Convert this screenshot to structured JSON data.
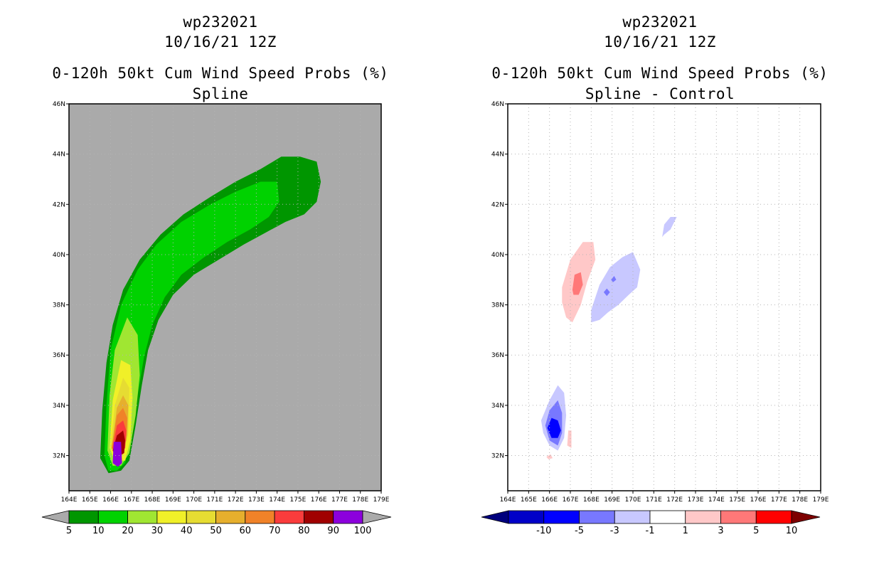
{
  "left_panel": {
    "storm_id": "wp232021",
    "datetime": "10/16/21 12Z",
    "product": "0-120h 50kt Cum Wind Speed Probs (%)",
    "subtitle": "Spline"
  },
  "right_panel": {
    "storm_id": "wp232021",
    "datetime": "10/16/21 12Z",
    "product": "0-120h 50kt Cum Wind Speed Probs (%)",
    "subtitle": "Spline - Control"
  },
  "chart_data": [
    {
      "type": "heatmap",
      "title": "0-120h 50kt Cum Wind Speed Probs (%)",
      "subtitle": "Spline",
      "background_color": "#aaaaaa",
      "x_ticks": [
        "164E",
        "165E",
        "166E",
        "167E",
        "168E",
        "169E",
        "170E",
        "171E",
        "172E",
        "173E",
        "174E",
        "175E",
        "176E",
        "177E",
        "178E",
        "179E"
      ],
      "y_ticks": [
        "32N",
        "34N",
        "36N",
        "38N",
        "40N",
        "42N",
        "44N",
        "46N"
      ],
      "xlim": [
        164,
        179
      ],
      "ylim": [
        30.6,
        46
      ],
      "grid": true,
      "colorbar": {
        "labels": [
          "5",
          "10",
          "20",
          "30",
          "40",
          "50",
          "60",
          "70",
          "80",
          "90",
          "100"
        ],
        "colors": [
          "#009600",
          "#00d200",
          "#a0e632",
          "#f0f028",
          "#e6dc32",
          "#e6af2d",
          "#f08228",
          "#fa3c3c",
          "#a00000",
          "#8c00dc"
        ],
        "under_color": "#aaaaaa",
        "over_color": "#aaaaaa"
      },
      "contours": [
        {
          "level": "5",
          "color": "#009600",
          "polygon": [
            [
              165.5,
              31.9
            ],
            [
              165.6,
              33.8
            ],
            [
              165.8,
              35.7
            ],
            [
              166.1,
              37.2
            ],
            [
              166.6,
              38.6
            ],
            [
              167.4,
              39.8
            ],
            [
              168.4,
              40.8
            ],
            [
              169.5,
              41.6
            ],
            [
              170.8,
              42.3
            ],
            [
              172.0,
              42.9
            ],
            [
              173.2,
              43.4
            ],
            [
              174.2,
              43.9
            ],
            [
              175.1,
              43.9
            ],
            [
              175.9,
              43.7
            ],
            [
              176.1,
              42.9
            ],
            [
              175.9,
              42.1
            ],
            [
              175.3,
              41.6
            ],
            [
              174.4,
              41.3
            ],
            [
              173.5,
              40.9
            ],
            [
              172.4,
              40.4
            ],
            [
              171.2,
              39.8
            ],
            [
              170.0,
              39.2
            ],
            [
              169.0,
              38.4
            ],
            [
              168.3,
              37.4
            ],
            [
              167.8,
              36.2
            ],
            [
              167.5,
              34.8
            ],
            [
              167.2,
              33.2
            ],
            [
              166.9,
              31.8
            ],
            [
              166.5,
              31.4
            ],
            [
              165.9,
              31.3
            ]
          ]
        },
        {
          "level": "10",
          "color": "#00d200",
          "polygon": [
            [
              165.7,
              32.0
            ],
            [
              165.8,
              34.0
            ],
            [
              166.0,
              36.2
            ],
            [
              166.5,
              38.0
            ],
            [
              167.3,
              39.4
            ],
            [
              168.2,
              40.4
            ],
            [
              169.4,
              41.3
            ],
            [
              170.8,
              42.0
            ],
            [
              172.0,
              42.5
            ],
            [
              173.2,
              42.9
            ],
            [
              174.0,
              42.9
            ],
            [
              174.1,
              42.1
            ],
            [
              173.6,
              41.5
            ],
            [
              172.7,
              41.0
            ],
            [
              171.6,
              40.5
            ],
            [
              170.5,
              39.9
            ],
            [
              169.4,
              39.2
            ],
            [
              168.6,
              38.3
            ],
            [
              168.0,
              37.2
            ],
            [
              167.6,
              35.9
            ],
            [
              167.3,
              34.4
            ],
            [
              167.0,
              32.9
            ],
            [
              166.7,
              31.7
            ],
            [
              166.3,
              31.4
            ],
            [
              165.9,
              31.4
            ]
          ]
        },
        {
          "level": "20",
          "color": "#a0e632",
          "polygon": [
            [
              165.85,
              32.2
            ],
            [
              165.95,
              34.4
            ],
            [
              166.2,
              36.2
            ],
            [
              166.8,
              37.5
            ],
            [
              167.3,
              36.8
            ],
            [
              167.4,
              35.2
            ],
            [
              167.2,
              33.6
            ],
            [
              166.9,
              32.1
            ],
            [
              166.5,
              31.6
            ],
            [
              166.1,
              31.6
            ]
          ]
        },
        {
          "level": "30",
          "color": "#f0f028",
          "polygon": [
            [
              165.95,
              32.3
            ],
            [
              166.1,
              34.2
            ],
            [
              166.5,
              35.8
            ],
            [
              166.95,
              35.6
            ],
            [
              167.05,
              34.3
            ],
            [
              166.95,
              32.6
            ],
            [
              166.7,
              31.8
            ],
            [
              166.2,
              31.8
            ]
          ]
        },
        {
          "level": "40",
          "color": "#e6dc32",
          "polygon": [
            [
              166.0,
              32.3
            ],
            [
              166.2,
              34.0
            ],
            [
              166.6,
              35.1
            ],
            [
              166.9,
              34.7
            ],
            [
              166.85,
              32.9
            ],
            [
              166.6,
              32.0
            ],
            [
              166.2,
              32.0
            ]
          ]
        },
        {
          "level": "50",
          "color": "#e6af2d",
          "polygon": [
            [
              166.05,
              32.3
            ],
            [
              166.3,
              33.9
            ],
            [
              166.6,
              34.4
            ],
            [
              166.85,
              34.0
            ],
            [
              166.8,
              32.8
            ],
            [
              166.55,
              32.1
            ],
            [
              166.2,
              32.1
            ]
          ]
        },
        {
          "level": "60",
          "color": "#f08228",
          "polygon": [
            [
              166.05,
              32.3
            ],
            [
              166.3,
              33.6
            ],
            [
              166.6,
              33.9
            ],
            [
              166.8,
              33.5
            ],
            [
              166.75,
              32.6
            ],
            [
              166.5,
              32.1
            ],
            [
              166.2,
              32.1
            ]
          ]
        },
        {
          "level": "70",
          "color": "#fa3c3c",
          "polygon": [
            [
              166.1,
              32.3
            ],
            [
              166.3,
              33.2
            ],
            [
              166.6,
              33.4
            ],
            [
              166.75,
              33.0
            ],
            [
              166.7,
              32.3
            ],
            [
              166.5,
              32.1
            ],
            [
              166.25,
              32.1
            ]
          ]
        },
        {
          "level": "80",
          "color": "#a00000",
          "polygon": [
            [
              166.1,
              32.2
            ],
            [
              166.3,
              32.8
            ],
            [
              166.6,
              33.0
            ],
            [
              166.7,
              32.6
            ],
            [
              166.65,
              32.1
            ],
            [
              166.45,
              32.0
            ],
            [
              166.25,
              32.0
            ]
          ]
        },
        {
          "level": "90",
          "color": "#8c00dc",
          "polygon": [
            [
              166.1,
              31.7
            ],
            [
              166.15,
              32.55
            ],
            [
              166.5,
              32.55
            ],
            [
              166.55,
              31.7
            ],
            [
              166.35,
              31.55
            ]
          ]
        }
      ]
    },
    {
      "type": "heatmap",
      "title": "0-120h 50kt Cum Wind Speed Probs (%)",
      "subtitle": "Spline - Control",
      "background_color": "#ffffff",
      "x_ticks": [
        "164E",
        "165E",
        "166E",
        "167E",
        "168E",
        "169E",
        "170E",
        "171E",
        "172E",
        "173E",
        "174E",
        "175E",
        "176E",
        "177E",
        "178E",
        "179E"
      ],
      "y_ticks": [
        "32N",
        "34N",
        "36N",
        "38N",
        "40N",
        "42N",
        "44N",
        "46N"
      ],
      "xlim": [
        164,
        179
      ],
      "ylim": [
        30.6,
        46
      ],
      "grid": true,
      "colorbar": {
        "labels": [
          "-10",
          "-5",
          "-3",
          "-1",
          "1",
          "3",
          "5",
          "10"
        ],
        "colors": [
          "#0000c8",
          "#0000ff",
          "#7878ff",
          "#c8c8ff",
          "#ffffff",
          "#ffc8c8",
          "#ff7878",
          "#ff0000"
        ],
        "under_color": "#00007d",
        "over_color": "#7d0000"
      },
      "contours": [
        {
          "level": "1",
          "color": "#ffc8c8",
          "polygon": [
            [
              166.6,
              38.7
            ],
            [
              167.0,
              39.8
            ],
            [
              167.6,
              40.5
            ],
            [
              168.1,
              40.5
            ],
            [
              168.2,
              39.8
            ],
            [
              167.8,
              38.9
            ],
            [
              167.5,
              38.0
            ],
            [
              167.1,
              37.3
            ],
            [
              166.8,
              37.5
            ],
            [
              166.6,
              38.1
            ]
          ]
        },
        {
          "level": "3",
          "color": "#ff7878",
          "polygon": [
            [
              167.1,
              38.6
            ],
            [
              167.2,
              39.2
            ],
            [
              167.5,
              39.3
            ],
            [
              167.6,
              38.8
            ],
            [
              167.4,
              38.4
            ],
            [
              167.15,
              38.4
            ]
          ]
        },
        {
          "level": "-1",
          "color": "#c8c8ff",
          "polygon": [
            [
              168.0,
              37.8
            ],
            [
              168.4,
              38.8
            ],
            [
              168.9,
              39.5
            ],
            [
              169.5,
              39.9
            ],
            [
              170.0,
              40.1
            ],
            [
              170.35,
              39.4
            ],
            [
              170.2,
              38.7
            ],
            [
              169.8,
              38.4
            ],
            [
              169.3,
              38.0
            ],
            [
              168.8,
              37.7
            ],
            [
              168.4,
              37.4
            ],
            [
              168.0,
              37.3
            ]
          ]
        },
        {
          "level": "-1",
          "color": "#c8c8ff",
          "polygon": [
            [
              171.4,
              40.7
            ],
            [
              171.5,
              41.2
            ],
            [
              171.8,
              41.5
            ],
            [
              172.1,
              41.5
            ],
            [
              171.8,
              41.0
            ],
            [
              171.5,
              40.8
            ]
          ]
        },
        {
          "level": "-1",
          "color": "#c8c8ff",
          "polygon": [
            [
              165.6,
              33.4
            ],
            [
              166.0,
              34.2
            ],
            [
              166.4,
              34.8
            ],
            [
              166.7,
              34.5
            ],
            [
              166.8,
              33.6
            ],
            [
              166.7,
              32.7
            ],
            [
              166.4,
              32.2
            ],
            [
              166.0,
              32.4
            ],
            [
              165.7,
              32.9
            ]
          ]
        },
        {
          "level": "-3",
          "color": "#7878ff",
          "polygon": [
            [
              165.8,
              33.2
            ],
            [
              166.0,
              33.8
            ],
            [
              166.4,
              34.2
            ],
            [
              166.6,
              33.7
            ],
            [
              166.6,
              32.9
            ],
            [
              166.4,
              32.4
            ],
            [
              166.0,
              32.6
            ]
          ]
        },
        {
          "level": "-5",
          "color": "#0000ff",
          "polygon": [
            [
              165.9,
              33.1
            ],
            [
              166.1,
              33.5
            ],
            [
              166.4,
              33.4
            ],
            [
              166.55,
              33.0
            ],
            [
              166.4,
              32.7
            ],
            [
              166.1,
              32.7
            ]
          ]
        },
        {
          "level": "-3",
          "color": "#7878ff",
          "polygon": [
            [
              168.6,
              38.5
            ],
            [
              168.75,
              38.65
            ],
            [
              168.9,
              38.5
            ],
            [
              168.75,
              38.35
            ]
          ]
        },
        {
          "level": "-3",
          "color": "#7878ff",
          "polygon": [
            [
              168.95,
              39.0
            ],
            [
              169.1,
              39.15
            ],
            [
              169.2,
              39.0
            ],
            [
              169.05,
              38.9
            ]
          ]
        },
        {
          "level": "1",
          "color": "#ffc8c8",
          "polygon": [
            [
              166.85,
              32.4
            ],
            [
              166.9,
              33.0
            ],
            [
              167.05,
              33.0
            ],
            [
              167.05,
              32.3
            ]
          ]
        },
        {
          "level": "1",
          "color": "#ffc8c8",
          "polygon": [
            [
              165.85,
              31.95
            ],
            [
              166.05,
              32.05
            ],
            [
              166.15,
              31.9
            ],
            [
              165.95,
              31.85
            ]
          ]
        }
      ]
    }
  ]
}
